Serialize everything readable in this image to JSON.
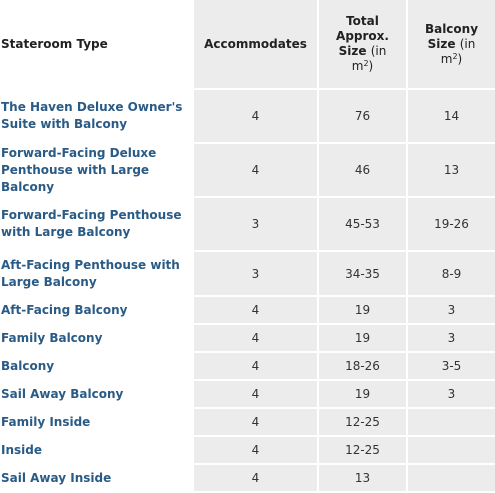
{
  "table": {
    "headers": {
      "type": "Stateroom Type",
      "accommodates": "Accommodates",
      "total_size_line1": "Total",
      "total_size_line2": "Approx.",
      "total_size_line3": "Size",
      "total_size_unit_open": "(in",
      "total_size_unit": "m",
      "total_size_sup": "2",
      "total_size_unit_close": ")",
      "balcony_line1": "Balcony",
      "balcony_line2": "Size",
      "balcony_unit_open": "(in",
      "balcony_unit": "m",
      "balcony_sup": "2",
      "balcony_unit_close": ")"
    },
    "rows": [
      {
        "type": "The Haven Deluxe Owner's Suite with Balcony",
        "accommodates": "4",
        "total_size": "76",
        "balcony_size": "14"
      },
      {
        "type": "Forward-Facing Deluxe Penthouse with Large Balcony",
        "accommodates": "4",
        "total_size": "46",
        "balcony_size": "13"
      },
      {
        "type": "Forward-Facing Penthouse with Large Balcony",
        "accommodates": "3",
        "total_size": "45-53",
        "balcony_size": "19-26"
      },
      {
        "type": "Aft-Facing Penthouse with Large Balcony",
        "accommodates": "3",
        "total_size": "34-35",
        "balcony_size": "8-9"
      },
      {
        "type": "Aft-Facing Balcony",
        "accommodates": "4",
        "total_size": "19",
        "balcony_size": "3"
      },
      {
        "type": "Family Balcony",
        "accommodates": "4",
        "total_size": "19",
        "balcony_size": "3"
      },
      {
        "type": "Balcony",
        "accommodates": "4",
        "total_size": "18-26",
        "balcony_size": "3-5"
      },
      {
        "type": "Sail Away Balcony",
        "accommodates": "4",
        "total_size": "19",
        "balcony_size": "3"
      },
      {
        "type": "Family Inside",
        "accommodates": "4",
        "total_size": "12-25",
        "balcony_size": ""
      },
      {
        "type": "Inside",
        "accommodates": "4",
        "total_size": "12-25",
        "balcony_size": ""
      },
      {
        "type": "Sail Away Inside",
        "accommodates": "4",
        "total_size": "13",
        "balcony_size": ""
      }
    ]
  },
  "colors": {
    "link": "#2a5b86",
    "cell_bg": "#ececec"
  }
}
